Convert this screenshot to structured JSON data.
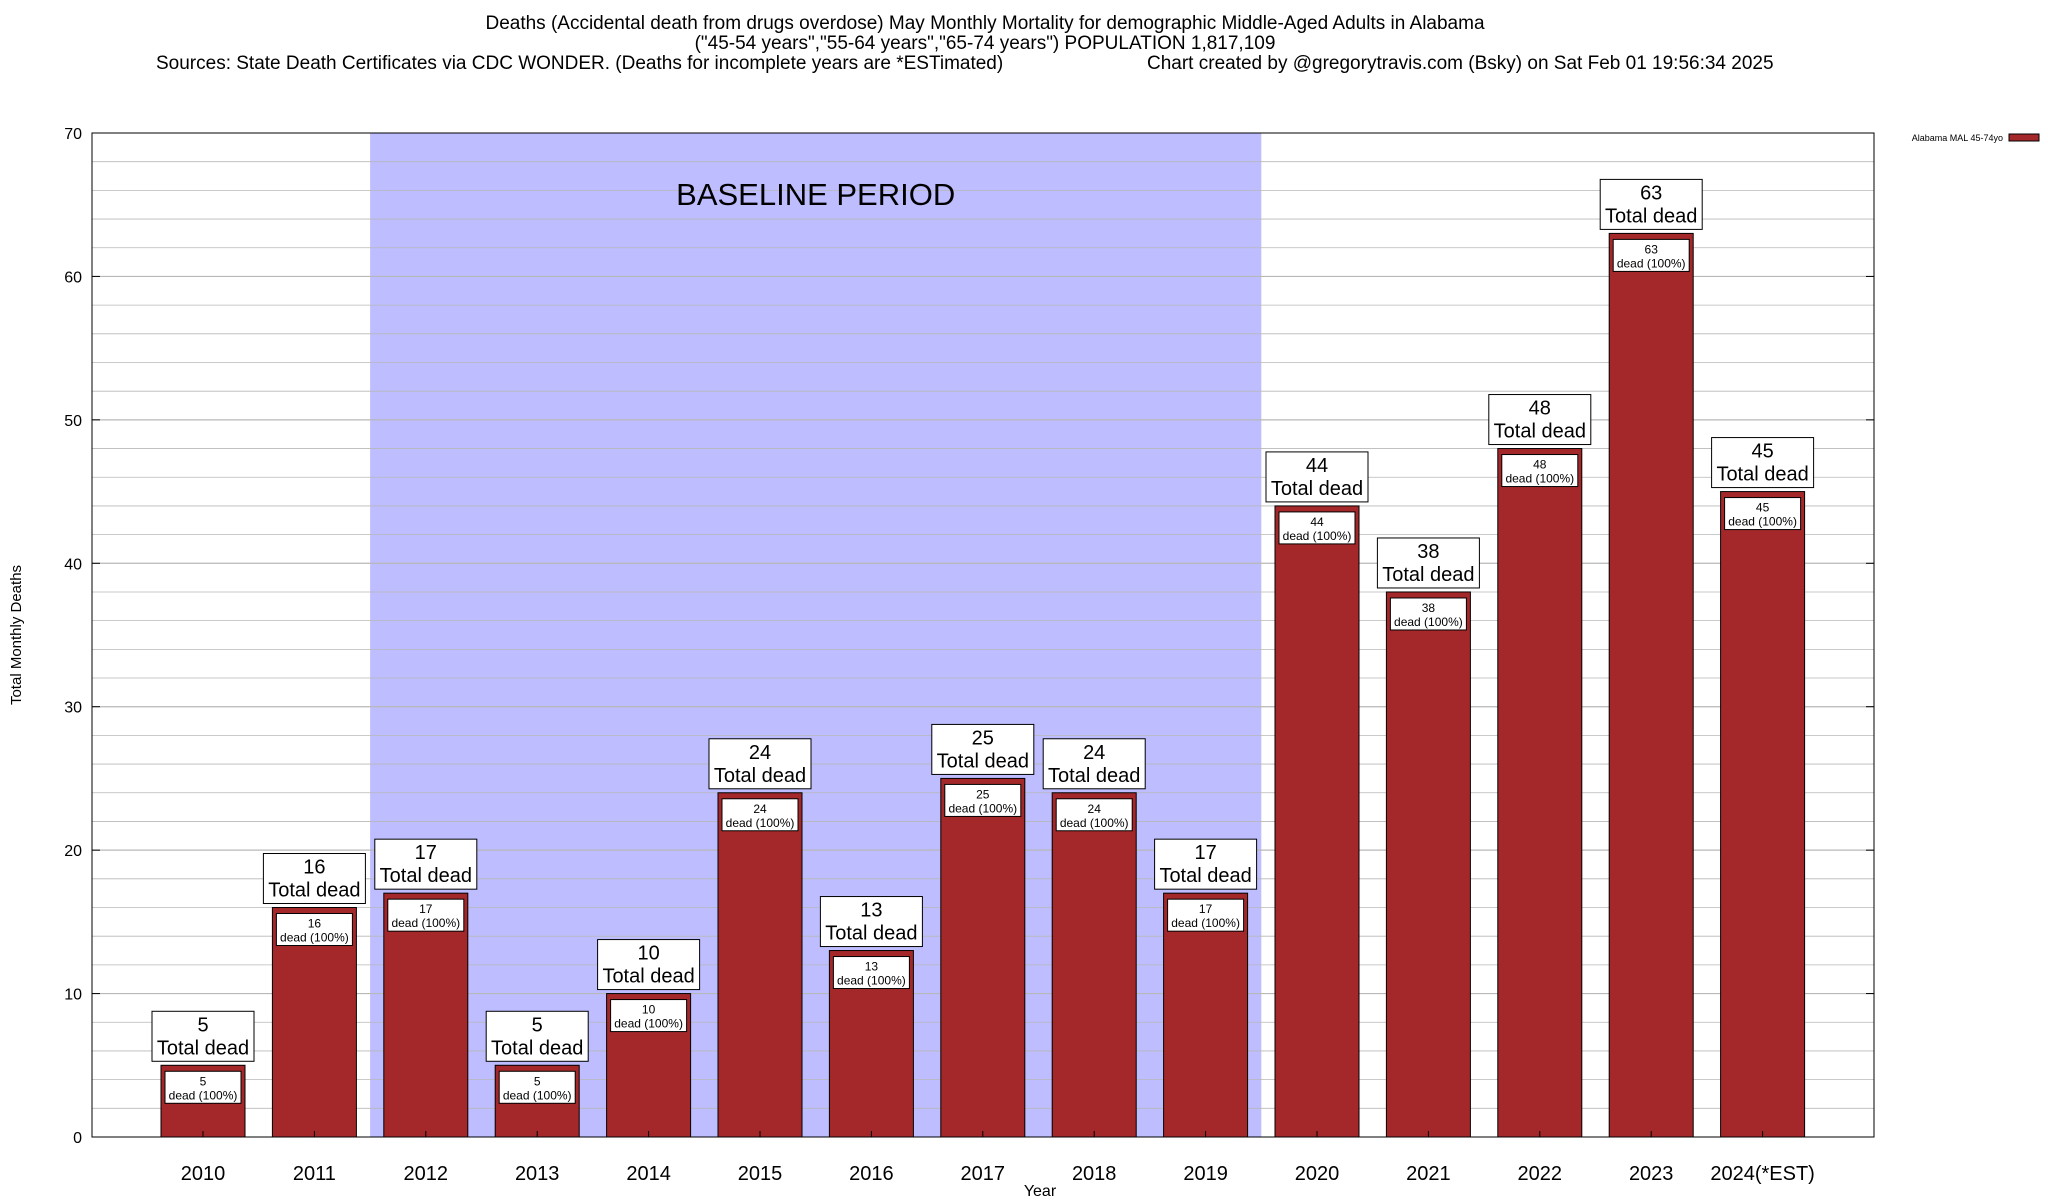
{
  "title_line1": "Deaths (Accidental death from drugs overdose) May Monthly Mortality for demographic Middle-Aged Adults in Alabama",
  "title_line2": "(\"45-54 years\",\"55-64 years\",\"65-74 years\") POPULATION 1,817,109",
  "title_line3_left": "Sources: State Death Certificates via CDC WONDER. (Deaths for incomplete years are *ESTimated)",
  "title_line3_right": "Chart created by @gregorytravis.com (Bsky) on Sat Feb 01 19:56:34 2025",
  "colors": {
    "bar": "#a4282a",
    "baseline_band": "#bdbdff",
    "grid": "#b8b8b8"
  },
  "chart_data": {
    "type": "bar",
    "xlabel": "Year",
    "ylabel": "Total Monthly Deaths",
    "ylim": [
      0,
      70
    ],
    "yticks": [
      0,
      10,
      20,
      30,
      40,
      50,
      60,
      70
    ],
    "grid": true,
    "legend_position": "top-right",
    "categories": [
      "2010",
      "2011",
      "2012",
      "2013",
      "2014",
      "2015",
      "2016",
      "2017",
      "2018",
      "2019",
      "2020",
      "2021",
      "2022",
      "2023",
      "2024(*EST)"
    ],
    "series": [
      {
        "name": "Alabama MAL 45-74yo",
        "values": [
          5,
          16,
          17,
          5,
          10,
          24,
          13,
          25,
          24,
          17,
          44,
          38,
          48,
          63,
          45
        ]
      }
    ],
    "total_label": "Total dead",
    "segment_label": "dead (100%)",
    "annotations": [
      {
        "text": "BASELINE PERIOD",
        "from_category": "2012",
        "to_category": "2019"
      }
    ]
  }
}
